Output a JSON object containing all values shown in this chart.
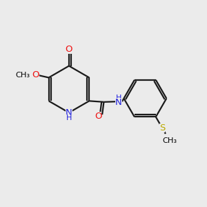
{
  "background_color": "#ebebeb",
  "atom_colors": {
    "C": "#000000",
    "N": "#2020dd",
    "O": "#ee1111",
    "S": "#bbaa00",
    "H": "#2020dd"
  },
  "bond_color": "#1a1a1a",
  "bond_width": 1.6,
  "figsize": [
    3.0,
    3.0
  ],
  "dpi": 100
}
